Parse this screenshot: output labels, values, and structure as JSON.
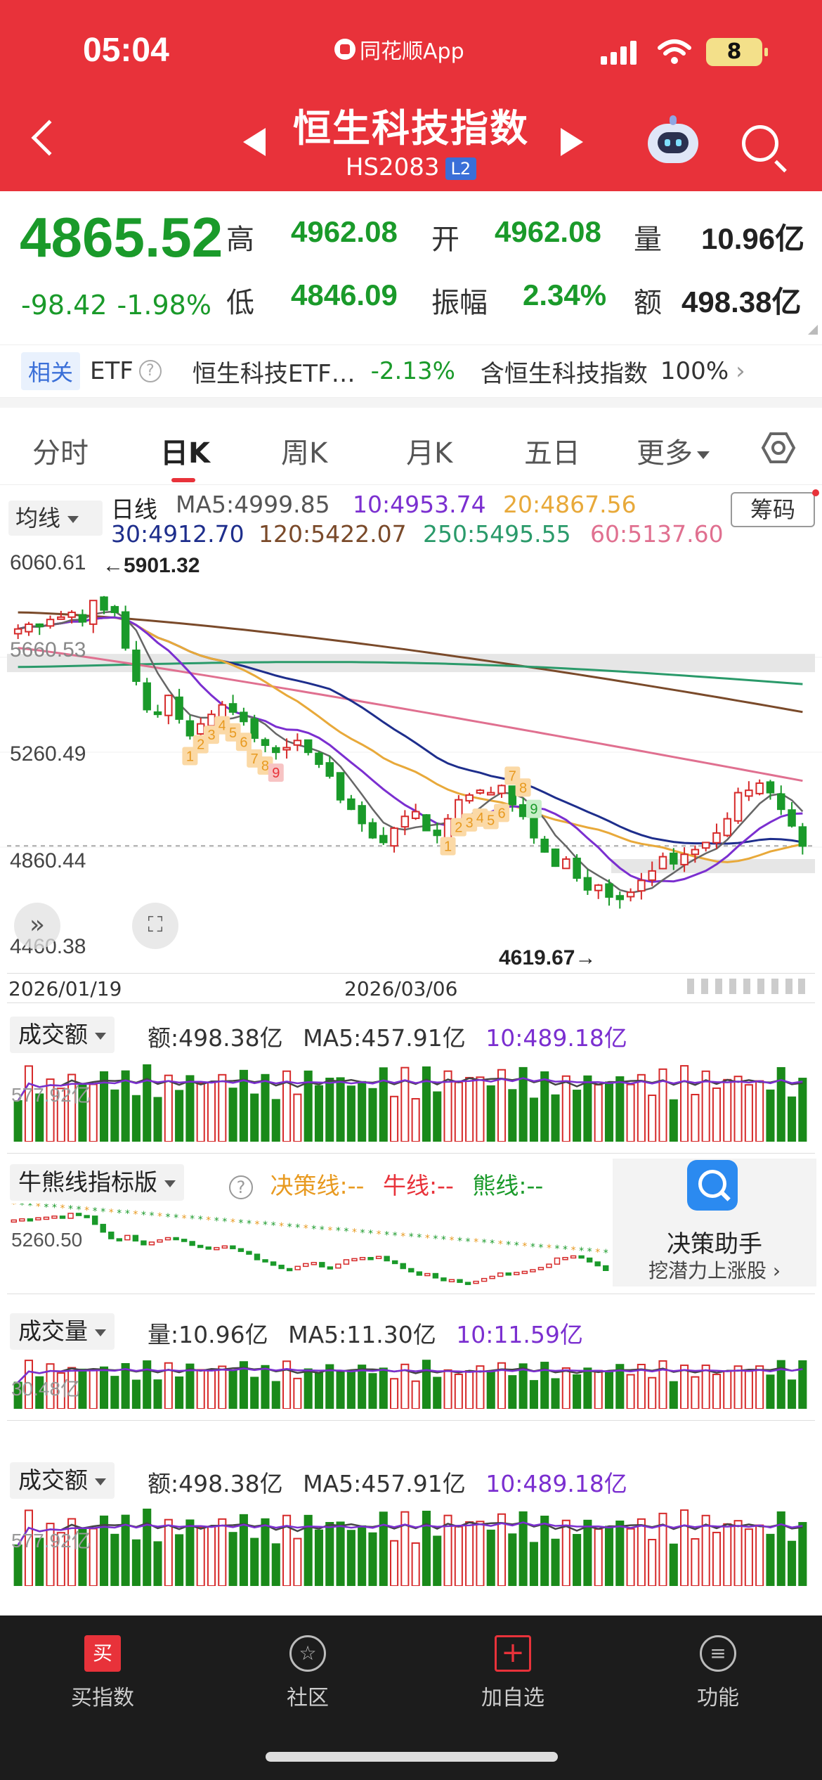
{
  "status": {
    "time": "05:04",
    "app": "同花顺App",
    "battery": "8"
  },
  "header": {
    "title": "恒生科技指数",
    "code": "HS2083",
    "level": "L2"
  },
  "quote": {
    "price": "4865.52",
    "change": "-98.42",
    "change_pct": "-1.98%",
    "high_label": "高",
    "high": "4962.08",
    "open_label": "开",
    "open": "4962.08",
    "vol_label": "量",
    "vol": "10.96亿",
    "low_label": "低",
    "low": "4846.09",
    "amp_label": "振幅",
    "amp": "2.34%",
    "amt_label": "额",
    "amt": "498.38亿"
  },
  "related": {
    "tag": "相关",
    "etf": "ETF",
    "help": "?",
    "item1": "恒生科技ETF…",
    "item1_change": "-2.13%",
    "item2": "含恒生科技指数",
    "item2_pct": "100%",
    "chevron": "›"
  },
  "tabs": {
    "t1": "分时",
    "t2": "日K",
    "t3": "周K",
    "t4": "月K",
    "t5": "五日",
    "t6": "更多"
  },
  "ma": {
    "selector": "均线",
    "period": "日线",
    "ma5": "MA5:4999.85",
    "ma10": "10:4953.74",
    "ma20": "20:4867.56",
    "ma30": "30:4912.70",
    "ma120": "120:5422.07",
    "ma250": "250:5495.55",
    "ma60": "60:5137.60",
    "chips": "筹码"
  },
  "kchart": {
    "y_top": "6060.61",
    "y_mid1": "5660.53",
    "y_mid2": "5260.49",
    "y_mid3": "4860.44",
    "y_bot": "4460.38",
    "high_mark": "←5901.32",
    "low_mark": "4619.67→",
    "date1": "2026/01/19",
    "date2": "2026/03/06",
    "seq_left": [
      "1",
      "2",
      "3",
      "4",
      "5",
      "6",
      "7",
      "8",
      "9"
    ],
    "seq_right": [
      "1",
      "2",
      "3",
      "4",
      "5",
      "6",
      "7",
      "8",
      "9"
    ]
  },
  "chart_data": {
    "type": "candlestick",
    "ylim": [
      4460.38,
      6060.61
    ],
    "x_start": "2026/01/19",
    "x_mid": "2026/03/06",
    "last_close": 4865.52,
    "high": 5901.32,
    "low": 4619.67,
    "closes": [
      5780,
      5800,
      5790,
      5820,
      5830,
      5850,
      5810,
      5900,
      5860,
      5850,
      5700,
      5560,
      5440,
      5420,
      5500,
      5400,
      5330,
      5380,
      5420,
      5460,
      5430,
      5390,
      5320,
      5290,
      5260,
      5280,
      5310,
      5260,
      5210,
      5160,
      5060,
      5020,
      4960,
      4900,
      4880,
      4940,
      4990,
      5010,
      4930,
      4910,
      4980,
      5060,
      5080,
      5100,
      5090,
      5120,
      5040,
      4990,
      4900,
      4840,
      4780,
      4810,
      4730,
      4680,
      4700,
      4650,
      4640,
      4670,
      4720,
      4760,
      4820,
      4790,
      4830,
      4850,
      4880,
      4920,
      4980,
      5090,
      5100,
      5130,
      5090,
      5020,
      4950,
      4865
    ],
    "amount_panel": {
      "title": "成交额",
      "value": "额:498.38亿",
      "ma5": "MA5:457.91亿",
      "ma10": "10:489.18亿",
      "scale": "577.92亿"
    },
    "bull_bear": {
      "title": "牛熊线指标版",
      "decision": "决策线:--",
      "bull": "牛线:--",
      "bear": "熊线:--",
      "scale": "5260.50"
    },
    "volume_panel": {
      "title": "成交量",
      "value": "量:10.96亿",
      "ma5": "MA5:11.30亿",
      "ma10": "10:11.59亿",
      "scale": "30.48亿"
    }
  },
  "assistant": {
    "title": "决策助手",
    "subtitle": "挖潜力上涨股 ›"
  },
  "nav": {
    "buy": "买指数",
    "buy_icon": "买",
    "community": "社区",
    "add": "加自选",
    "func": "功能"
  },
  "colors": {
    "header": "#e8323a",
    "down": "#1a9a2a",
    "up": "#d62a2a",
    "ma5": "#666666",
    "ma10": "#7b2fd0",
    "ma20": "#e8a93a",
    "ma30": "#1e2e8c",
    "ma60": "#e07090",
    "ma120": "#7a4a2a",
    "ma250": "#2a9a6a"
  }
}
